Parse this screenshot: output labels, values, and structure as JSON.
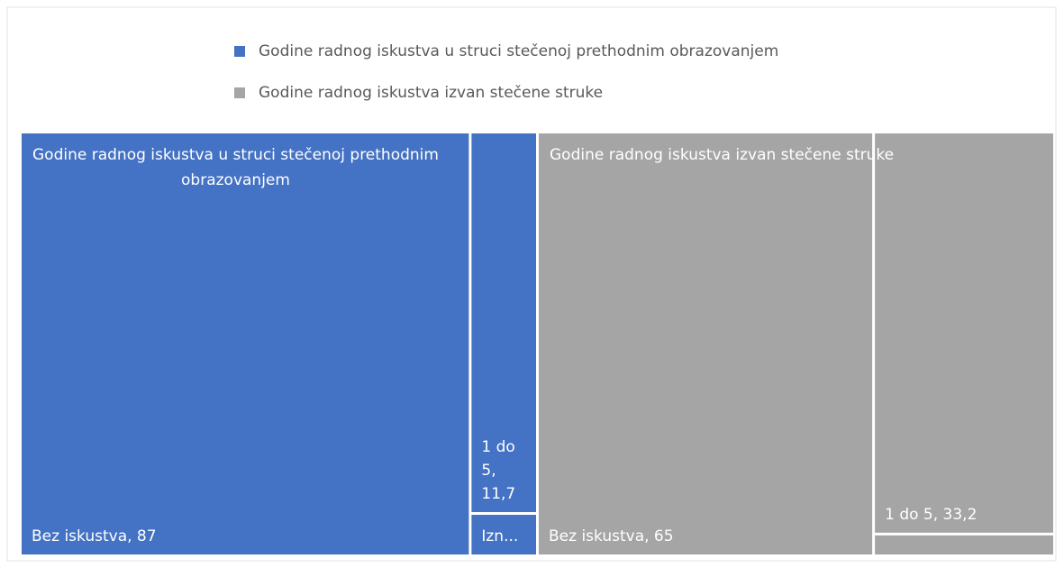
{
  "chart_data": {
    "type": "treemap",
    "legend_position": "top",
    "series": [
      {
        "name": "Godine radnog iskustva u struci stečenoj prethodnim obrazovanjem",
        "color": "#4472c4",
        "values": [
          87,
          11.7,
          1.3
        ],
        "value_labels": [
          "Bez iskustva, 87",
          "1 do 5, 11,7",
          "Izn..."
        ]
      },
      {
        "name": "Godine radnog iskustva izvan stečene struke",
        "color": "#a5a5a5",
        "values": [
          65,
          33.2,
          1.8
        ],
        "value_labels": [
          "Bez iskustva, 65",
          "1 do 5, 33,2",
          null
        ]
      }
    ]
  }
}
